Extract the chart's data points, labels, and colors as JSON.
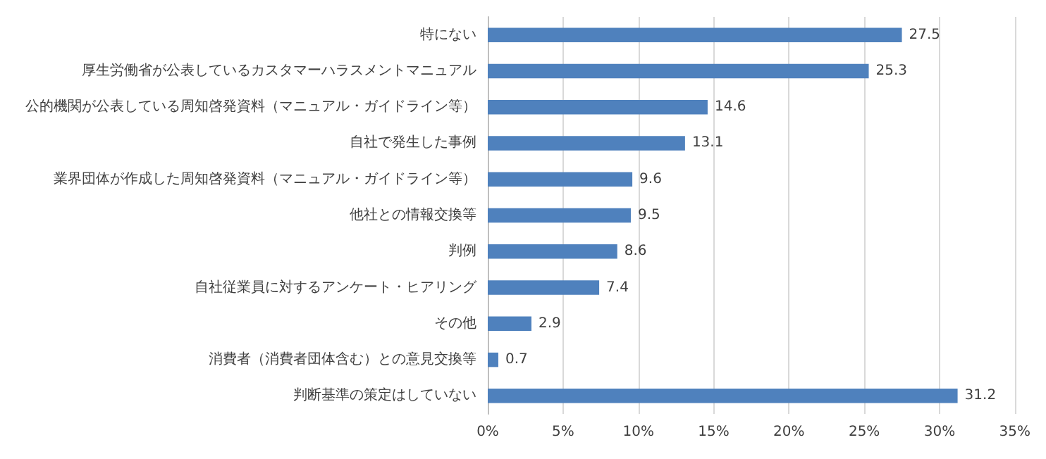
{
  "chart_data": {
    "type": "bar",
    "orientation": "horizontal",
    "categories": [
      "特にない",
      "厚生労働省が公表しているカスタマーハラスメントマニュアル",
      "公的機関が公表している周知啓発資料（マニュアル・ガイドライン等）",
      "自社で発生した事例",
      "業界団体が作成した周知啓発資料（マニュアル・ガイドライン等）",
      "他社との情報交換等",
      "判例",
      "自社従業員に対するアンケート・ヒアリング",
      "その他",
      "消費者（消費者団体含む）との意見交換等",
      "判断基準の策定はしていない"
    ],
    "values": [
      27.5,
      25.3,
      14.6,
      13.1,
      9.6,
      9.5,
      8.6,
      7.4,
      2.9,
      0.7,
      31.2
    ],
    "color": "#4f81bd",
    "data_labels": true,
    "grid": "x",
    "xlim": [
      0,
      35
    ],
    "xticks": [
      {
        "value": 0,
        "label": "0%"
      },
      {
        "value": 5,
        "label": "5%"
      },
      {
        "value": 10,
        "label": "10%"
      },
      {
        "value": 15,
        "label": "15%"
      },
      {
        "value": 20,
        "label": "20%"
      },
      {
        "value": 25,
        "label": "25%"
      },
      {
        "value": 30,
        "label": "30%"
      },
      {
        "value": 35,
        "label": "35%"
      }
    ]
  }
}
